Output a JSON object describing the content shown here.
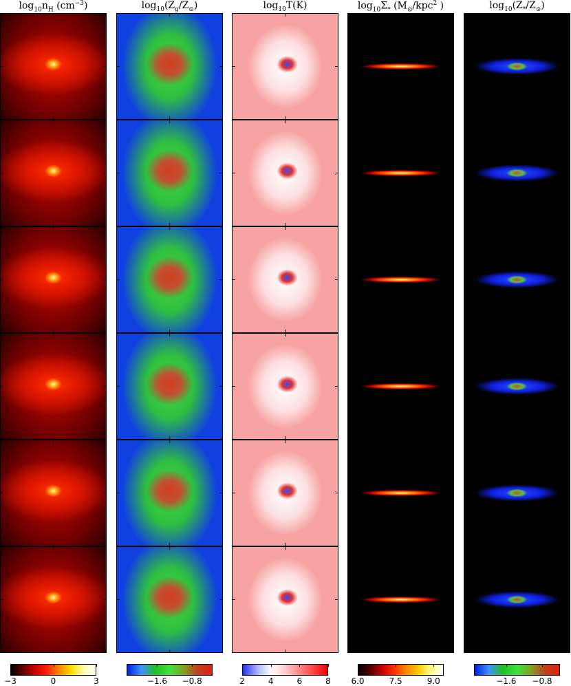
{
  "figure": {
    "columns": [
      {
        "title": [
          {
            "text": "log"
          },
          {
            "text": "10",
            "sub": true
          },
          {
            "text": "n"
          },
          {
            "text": "H",
            "sub": true
          },
          {
            "text": " (cm"
          },
          {
            "text": "−3",
            "sup": true
          },
          {
            "text": ")"
          }
        ],
        "colorbar": {
          "lim": [
            -3,
            3
          ],
          "ticks": [
            {
              "value": -3,
              "label": "−3"
            },
            0,
            3
          ]
        }
      },
      {
        "title": [
          {
            "text": "log"
          },
          {
            "text": "10",
            "sub": true
          },
          {
            "text": "(Z"
          },
          {
            "text": "g",
            "sub": true
          },
          {
            "text": "/Z"
          },
          {
            "text": "⊙",
            "sub": true
          },
          {
            "text": ")"
          }
        ],
        "colorbar": {
          "lim": [
            -2.3,
            -0.33
          ],
          "ticks": [
            {
              "value": -1.6,
              "label": "−1.6"
            },
            {
              "value": -0.8,
              "label": "−0.8"
            }
          ]
        }
      },
      {
        "title": [
          {
            "text": "log"
          },
          {
            "text": "10",
            "sub": true
          },
          {
            "text": "T(K)"
          }
        ],
        "colorbar": {
          "lim": [
            2,
            8
          ],
          "ticks": [
            2,
            4,
            6,
            8
          ]
        }
      },
      {
        "title": [
          {
            "text": "log"
          },
          {
            "text": "10",
            "sub": true
          },
          {
            "text": "Σ"
          },
          {
            "text": "*",
            "sub": true
          },
          {
            "text": " (M"
          },
          {
            "text": "⊙",
            "sub": true
          },
          {
            "text": "/kpc"
          },
          {
            "text": "2",
            "sup": true
          },
          {
            "text": " )"
          }
        ],
        "colorbar": {
          "lim": [
            6.0,
            9.4
          ],
          "ticks": [
            {
              "value": 6,
              "label": "6.0"
            },
            {
              "value": 7.5,
              "label": "7.5"
            },
            {
              "value": 9,
              "label": "9.0"
            }
          ]
        }
      },
      {
        "title": [
          {
            "text": "log"
          },
          {
            "text": "10",
            "sub": true
          },
          {
            "text": "(Z"
          },
          {
            "text": "*",
            "sub": true
          },
          {
            "text": "/Z"
          },
          {
            "text": "⊙",
            "sub": true
          },
          {
            "text": ")"
          }
        ],
        "colorbar": {
          "lim": [
            -2.32,
            -0.4
          ],
          "ticks": [
            {
              "value": -1.6,
              "label": "−1.6"
            },
            {
              "value": -0.8,
              "label": "−0.8"
            }
          ]
        }
      }
    ]
  }
}
